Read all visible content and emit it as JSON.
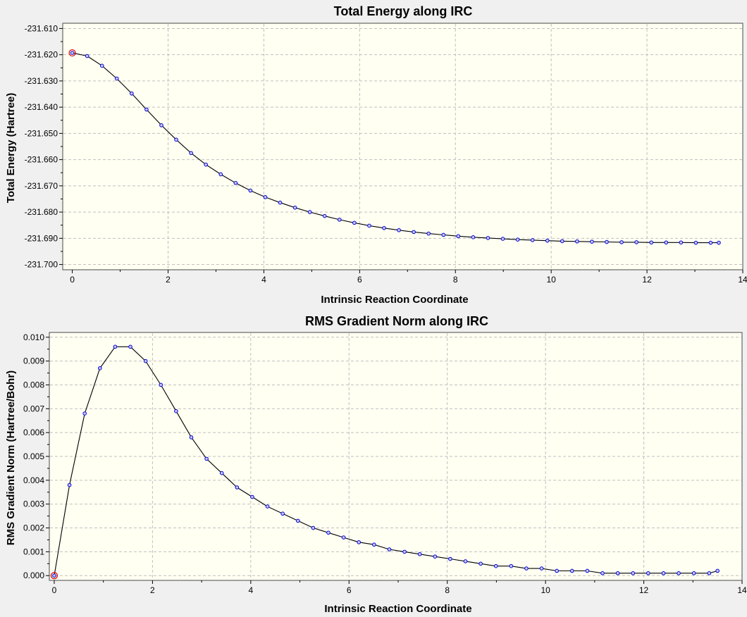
{
  "chart_data": [
    {
      "type": "line",
      "title": "Total Energy along IRC",
      "xlabel": "Intrinsic Reaction Coordinate",
      "ylabel": "Total Energy (Hartree)",
      "xlim": [
        -0.2,
        14
      ],
      "ylim": [
        -231.702,
        -231.608
      ],
      "xticks": [
        0,
        2,
        4,
        6,
        8,
        10,
        12,
        14
      ],
      "xtick_labels": [
        "0",
        "2",
        "4",
        "6",
        "8",
        "10",
        "12",
        "14"
      ],
      "yticks": [
        -231.61,
        -231.62,
        -231.63,
        -231.64,
        -231.65,
        -231.66,
        -231.67,
        -231.68,
        -231.69,
        -231.7
      ],
      "ytick_labels": [
        "-231.610",
        "-231.620",
        "-231.630",
        "-231.640",
        "-231.650",
        "-231.660",
        "-231.670",
        "-231.680",
        "-231.690",
        "-231.700"
      ],
      "grid": true,
      "marked_point_index": 0,
      "series": [
        {
          "x": [
            0,
            0.31,
            0.62,
            0.93,
            1.24,
            1.55,
            1.86,
            2.17,
            2.48,
            2.79,
            3.1,
            3.41,
            3.72,
            4.03,
            4.34,
            4.65,
            4.96,
            5.27,
            5.58,
            5.89,
            6.2,
            6.51,
            6.82,
            7.13,
            7.44,
            7.75,
            8.06,
            8.37,
            8.68,
            8.99,
            9.3,
            9.61,
            9.92,
            10.23,
            10.54,
            10.85,
            11.16,
            11.47,
            11.78,
            12.09,
            12.4,
            12.71,
            13.02,
            13.33,
            13.5
          ],
          "y": [
            -231.6193,
            -231.6205,
            -231.6242,
            -231.6291,
            -231.6348,
            -231.6409,
            -231.6469,
            -231.6524,
            -231.6575,
            -231.6619,
            -231.6656,
            -231.6689,
            -231.6718,
            -231.6743,
            -231.6764,
            -231.6783,
            -231.68,
            -231.6815,
            -231.6829,
            -231.6841,
            -231.6852,
            -231.6861,
            -231.6869,
            -231.6876,
            -231.6882,
            -231.6887,
            -231.6892,
            -231.6896,
            -231.6899,
            -231.6902,
            -231.6905,
            -231.6907,
            -231.6909,
            -231.6911,
            -231.6912,
            -231.6913,
            -231.6914,
            -231.6915,
            -231.6915,
            -231.6916,
            -231.6916,
            -231.6916,
            -231.6917,
            -231.6917,
            -231.6917
          ]
        }
      ]
    },
    {
      "type": "line",
      "title": "RMS Gradient Norm along IRC",
      "xlabel": "Intrinsic Reaction Coordinate",
      "ylabel": "RMS Gradient Norm (Hartree/Bohr)",
      "xlim": [
        -0.1,
        14
      ],
      "ylim": [
        -0.0002,
        0.0102
      ],
      "xticks": [
        0,
        2,
        4,
        6,
        8,
        10,
        12,
        14
      ],
      "xtick_labels": [
        "0",
        "2",
        "4",
        "6",
        "8",
        "10",
        "12",
        "14"
      ],
      "yticks": [
        0,
        0.001,
        0.002,
        0.003,
        0.004,
        0.005,
        0.006,
        0.007,
        0.008,
        0.009,
        0.01
      ],
      "ytick_labels": [
        "0.000",
        "0.001",
        "0.002",
        "0.003",
        "0.004",
        "0.005",
        "0.006",
        "0.007",
        "0.008",
        "0.009",
        "0.010"
      ],
      "grid": true,
      "marked_point_index": 0,
      "series": [
        {
          "x": [
            0,
            0.31,
            0.62,
            0.93,
            1.24,
            1.55,
            1.86,
            2.17,
            2.48,
            2.79,
            3.1,
            3.41,
            3.72,
            4.03,
            4.34,
            4.65,
            4.96,
            5.27,
            5.58,
            5.89,
            6.2,
            6.51,
            6.82,
            7.13,
            7.44,
            7.75,
            8.06,
            8.37,
            8.68,
            8.99,
            9.3,
            9.61,
            9.92,
            10.23,
            10.54,
            10.85,
            11.16,
            11.47,
            11.78,
            12.09,
            12.4,
            12.71,
            13.02,
            13.33,
            13.5
          ],
          "y": [
            0.0,
            0.0038,
            0.0068,
            0.0087,
            0.0096,
            0.0096,
            0.009,
            0.008,
            0.0069,
            0.0058,
            0.0049,
            0.0043,
            0.0037,
            0.0033,
            0.0029,
            0.0026,
            0.0023,
            0.002,
            0.0018,
            0.0016,
            0.0014,
            0.0013,
            0.0011,
            0.001,
            0.0009,
            0.0008,
            0.0007,
            0.0006,
            0.0005,
            0.0004,
            0.0004,
            0.0003,
            0.0003,
            0.0002,
            0.0002,
            0.0002,
            0.0001,
            0.0001,
            0.0001,
            0.0001,
            0.0001,
            0.0001,
            0.0001,
            0.0001,
            0.0002
          ]
        }
      ]
    }
  ]
}
